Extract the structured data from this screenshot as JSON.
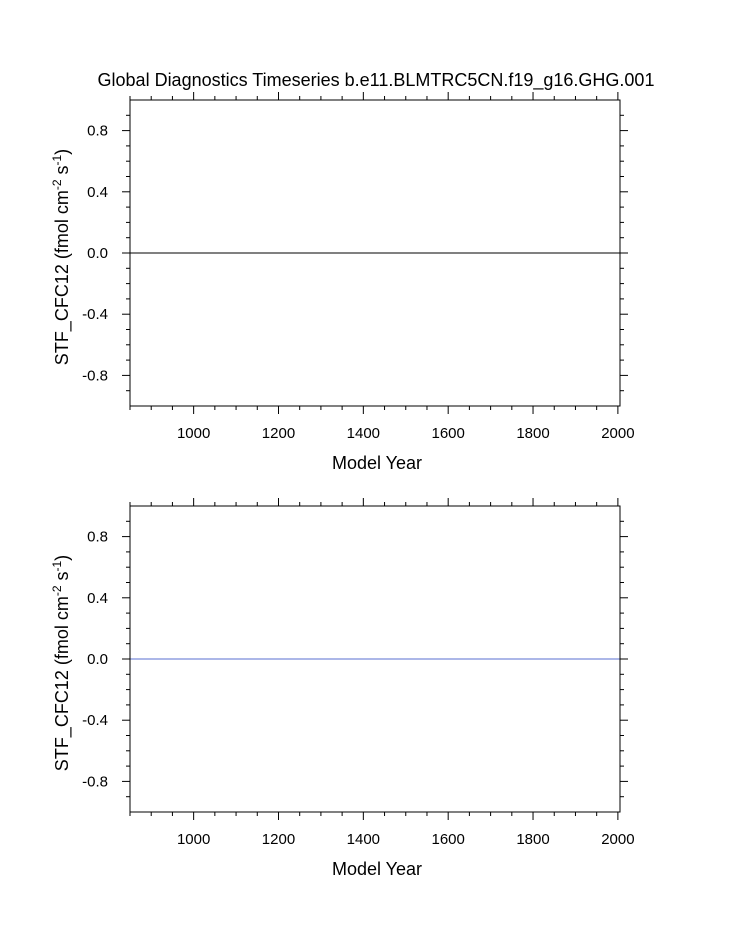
{
  "title": "Global Diagnostics Timeseries b.e11.BLMTRC5CN.f19_g16.GHG.001",
  "chart_data": [
    {
      "type": "line",
      "xlabel": "Model Year",
      "ylabel_main": "STF_CFC12 (fmol cm",
      "ylabel_sup1": "-2",
      "ylabel_mid": " s",
      "ylabel_sup2": "-1",
      "ylabel_end": ")",
      "xlim": [
        850,
        2005
      ],
      "ylim": [
        -1.0,
        1.0
      ],
      "xticks": [
        1000,
        1200,
        1400,
        1600,
        1800,
        2000
      ],
      "xtick_labels": [
        "1000",
        "1200",
        "1400",
        "1600",
        "1800",
        "2000"
      ],
      "yticks": [
        0.8,
        0.4,
        0.0,
        -0.4,
        -0.8
      ],
      "ytick_labels": [
        "0.8",
        "0.4",
        "0.0",
        "-0.4",
        "-0.8"
      ],
      "grid": false,
      "series": [
        {
          "color": "#000000",
          "x": [
            850,
            2005
          ],
          "y": [
            0.0,
            0.0
          ]
        }
      ]
    },
    {
      "type": "line",
      "xlabel": "Model Year",
      "ylabel_main": "STF_CFC12 (fmol cm",
      "ylabel_sup1": "-2",
      "ylabel_mid": " s",
      "ylabel_sup2": "-1",
      "ylabel_end": ")",
      "xlim": [
        850,
        2005
      ],
      "ylim": [
        -1.0,
        1.0
      ],
      "xticks": [
        1000,
        1200,
        1400,
        1600,
        1800,
        2000
      ],
      "xtick_labels": [
        "1000",
        "1200",
        "1400",
        "1600",
        "1800",
        "2000"
      ],
      "yticks": [
        0.8,
        0.4,
        0.0,
        -0.4,
        -0.8
      ],
      "ytick_labels": [
        "0.8",
        "0.4",
        "0.0",
        "-0.4",
        "-0.8"
      ],
      "grid": false,
      "series": [
        {
          "color": "#cc0000",
          "x": [
            850,
            2005
          ],
          "y": [
            0.0,
            0.0
          ]
        },
        {
          "color": "#5a6fd0",
          "x": [
            850,
            2005
          ],
          "y": [
            0.0,
            0.0
          ]
        }
      ]
    }
  ]
}
